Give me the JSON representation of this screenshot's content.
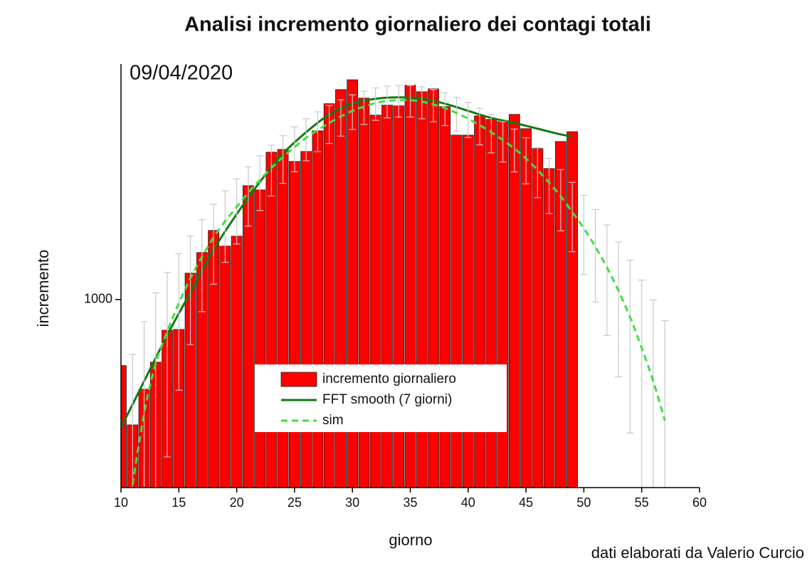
{
  "chart_data": {
    "type": "bar",
    "title": "Analisi incremento giornaliero dei contagi totali",
    "annotation": "09/04/2020",
    "credit": "dati elaborati da Valerio Curcio",
    "xlabel": "giorno",
    "ylabel": "incremento",
    "xlim": [
      10,
      60
    ],
    "xticks": [
      10,
      15,
      20,
      25,
      30,
      35,
      40,
      45,
      50,
      55,
      60
    ],
    "ylim": [
      200,
      7500
    ],
    "yticks": [
      1000
    ],
    "ylog": true,
    "legend": "bottom-center",
    "series": [
      {
        "name": "incremento giornaliero",
        "type": "bar",
        "color": "#ff0000",
        "x": [
          10,
          11,
          12,
          13,
          14,
          15,
          16,
          17,
          18,
          19,
          20,
          21,
          22,
          23,
          24,
          25,
          26,
          27,
          28,
          29,
          30,
          31,
          32,
          33,
          34,
          35,
          36,
          37,
          38,
          39,
          40,
          41,
          42,
          43,
          44,
          45,
          46,
          47,
          48,
          49
        ],
        "values": [
          568,
          342,
          464,
          585,
          769,
          774,
          1253,
          1495,
          1806,
          1579,
          1719,
          2650,
          2555,
          3528,
          3614,
          3260,
          3550,
          4236,
          5343,
          6030,
          6557,
          5606,
          4845,
          5276,
          5245,
          6255,
          5919,
          6066,
          5210,
          4083,
          4083,
          4815,
          4670,
          4585,
          4875,
          4315,
          3640,
          3068,
          3866,
          4204
        ]
      },
      {
        "name": "FFT smooth (7 giorni)",
        "type": "line",
        "color": "#137a13",
        "x": [
          10,
          12,
          14,
          16,
          18,
          20,
          22,
          24,
          26,
          28,
          30,
          32,
          34,
          36,
          38,
          40,
          42,
          44,
          46,
          48,
          49
        ],
        "values": [
          334,
          497,
          738,
          1063,
          1531,
          2077,
          2733,
          3486,
          4186,
          4875,
          5343,
          5571,
          5641,
          5571,
          5343,
          5025,
          4730,
          4531,
          4315,
          4108,
          4037
        ]
      },
      {
        "name": "sim",
        "type": "line",
        "dashed": true,
        "color": "#44dd44",
        "error_color": "#c8c8c8",
        "x": [
          11,
          12,
          13,
          14,
          15,
          16,
          17,
          18,
          19,
          20,
          21,
          22,
          23,
          24,
          25,
          26,
          27,
          28,
          29,
          30,
          31,
          32,
          33,
          34,
          35,
          36,
          37,
          38,
          39,
          40,
          41,
          42,
          43,
          44,
          45,
          46,
          47,
          48,
          49,
          50,
          51,
          52,
          53,
          54,
          55,
          56,
          57
        ],
        "values": [
          205,
          377,
          578,
          760,
          970,
          1200,
          1441,
          1700,
          1954,
          2208,
          2494,
          2781,
          3085,
          3382,
          3684,
          3988,
          4264,
          4531,
          4786,
          5025,
          5210,
          5373,
          5471,
          5505,
          5505,
          5435,
          5307,
          5148,
          4932,
          4699,
          4446,
          4186,
          3914,
          3640,
          3342,
          3030,
          2717,
          2420,
          2115,
          1839,
          1570,
          1315,
          1076,
          859,
          661,
          497,
          355
        ],
        "errors": [
          420,
          450,
          480,
          500,
          510,
          520,
          540,
          560,
          580,
          600,
          620,
          640,
          660,
          680,
          700,
          710,
          720,
          730,
          740,
          740,
          740,
          740,
          740,
          740,
          740,
          740,
          730,
          720,
          710,
          700,
          690,
          680,
          670,
          660,
          650,
          640,
          630,
          620,
          610,
          600,
          590,
          580,
          560,
          540,
          520,
          500,
          480
        ]
      }
    ]
  }
}
